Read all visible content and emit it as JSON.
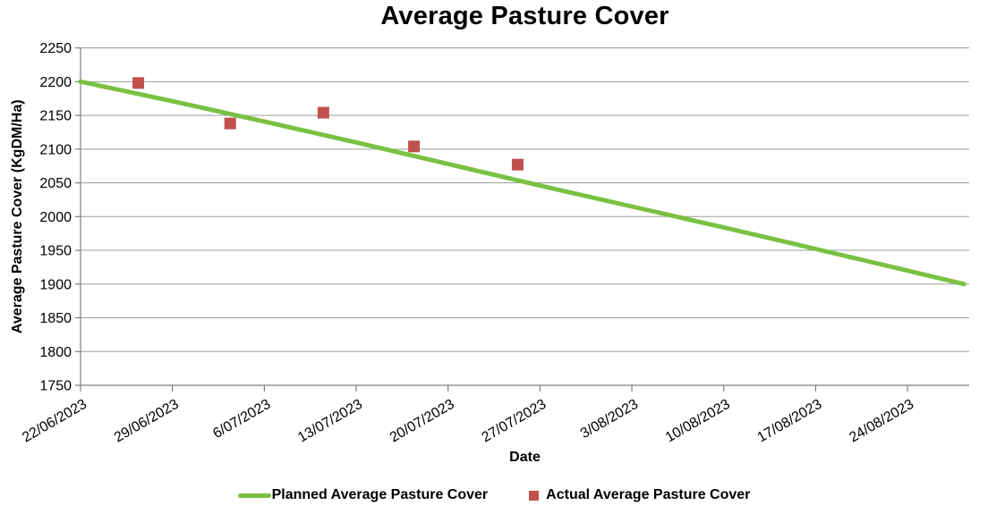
{
  "title": "Average Pasture Cover",
  "legend": {
    "planned_label": "Planned Average Pasture Cover",
    "actual_label": "Actual Average Pasture Cover"
  },
  "colors": {
    "planned_line": "#7AC143",
    "actual_marker": "#C0504D",
    "gridline": "#9D9D9D",
    "axis": "#7F7F7F",
    "text": "#000000",
    "background": "#FFFFFF"
  },
  "chart_data": {
    "type": "line",
    "title": "Average Pasture Cover",
    "x_axis": {
      "title": "Date",
      "tick_labels": [
        "22/06/2023",
        "29/06/2023",
        "6/07/2023",
        "13/07/2023",
        "20/07/2023",
        "27/07/2023",
        "3/08/2023",
        "10/08/2023",
        "17/08/2023",
        "24/08/2023"
      ],
      "tick_interval_days": 7,
      "range_days": [
        0,
        67.7
      ],
      "labels_rotation_deg": -30
    },
    "y_axis": {
      "title": "Average Pasture Cover (KgDM/Ha)",
      "min": 1750,
      "max": 2250,
      "step": 50,
      "gridlines": true
    },
    "legend_position": "bottom",
    "series": [
      {
        "name": "Planned Average Pasture Cover",
        "type": "line",
        "color": "#7AC143",
        "points": [
          {
            "day": 0,
            "value": 2200
          },
          {
            "day": 7,
            "value": 2171
          },
          {
            "day": 14,
            "value": 2141
          },
          {
            "day": 21,
            "value": 2110
          },
          {
            "day": 28,
            "value": 2078
          },
          {
            "day": 35,
            "value": 2046
          },
          {
            "day": 42,
            "value": 2015
          },
          {
            "day": 49,
            "value": 1984
          },
          {
            "day": 56,
            "value": 1952
          },
          {
            "day": 63,
            "value": 1920
          },
          {
            "day": 67.3,
            "value": 1900
          }
        ]
      },
      {
        "name": "Actual Average Pasture Cover",
        "type": "scatter",
        "color": "#C0504D",
        "points": [
          {
            "day": 4.4,
            "approx_date": "26/06/2023",
            "value": 2198
          },
          {
            "day": 11.4,
            "approx_date": "3/07/2023",
            "value": 2138
          },
          {
            "day": 18.5,
            "approx_date": "10/07/2023",
            "value": 2154
          },
          {
            "day": 25.4,
            "approx_date": "17/07/2023",
            "value": 2104
          },
          {
            "day": 33.3,
            "approx_date": "25/07/2023",
            "value": 2077
          }
        ]
      }
    ]
  }
}
